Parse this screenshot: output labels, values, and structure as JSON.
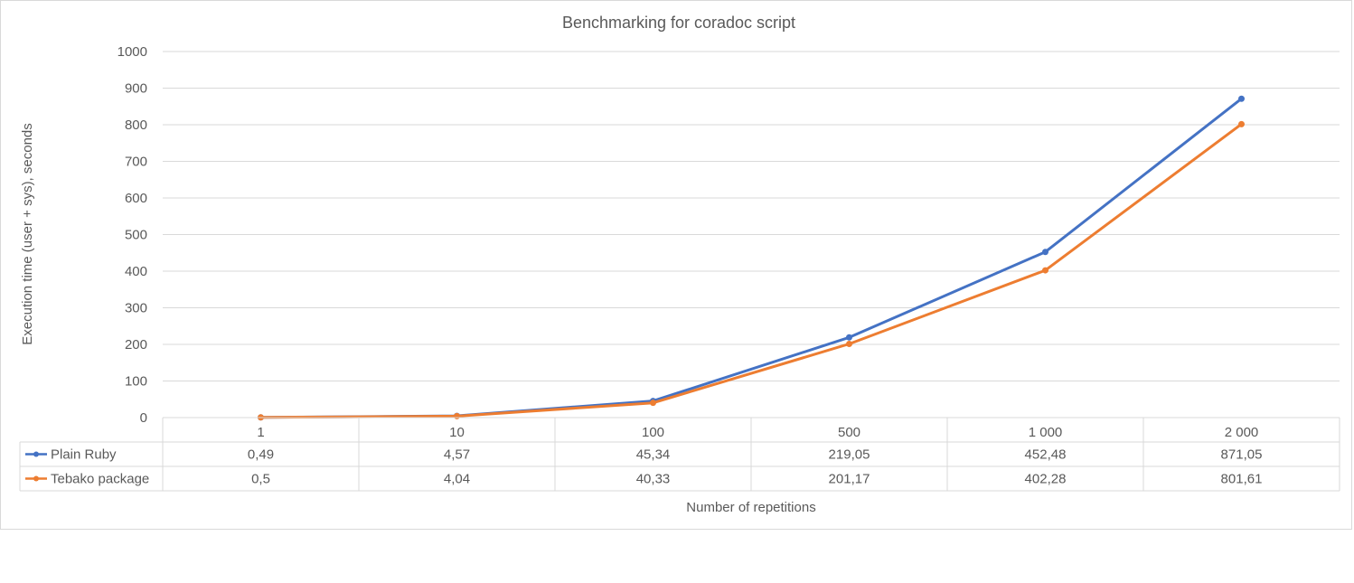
{
  "chart_data": {
    "type": "line",
    "title": "Benchmarking for coradoc script",
    "xlabel": "Number of repetitions",
    "ylabel": "Execution time (user + sys), seconds",
    "categories": [
      "1",
      "10",
      "100",
      "500",
      "1 000",
      "2 000"
    ],
    "ylim": [
      0,
      1000
    ],
    "yticks": [
      0,
      100,
      200,
      300,
      400,
      500,
      600,
      700,
      800,
      900,
      1000
    ],
    "grid": true,
    "legend": "data-table",
    "series": [
      {
        "name": "Plain Ruby",
        "color": "#4472c4",
        "values": [
          0.49,
          4.57,
          45.34,
          219.05,
          452.48,
          871.05
        ],
        "labels": [
          "0,49",
          "4,57",
          "45,34",
          "219,05",
          "452,48",
          "871,05"
        ]
      },
      {
        "name": "Tebako package",
        "color": "#ed7d31",
        "values": [
          0.5,
          4.04,
          40.33,
          201.17,
          402.28,
          801.61
        ],
        "labels": [
          "0,5",
          "4,04",
          "40,33",
          "201,17",
          "402,28",
          "801,61"
        ]
      }
    ]
  }
}
